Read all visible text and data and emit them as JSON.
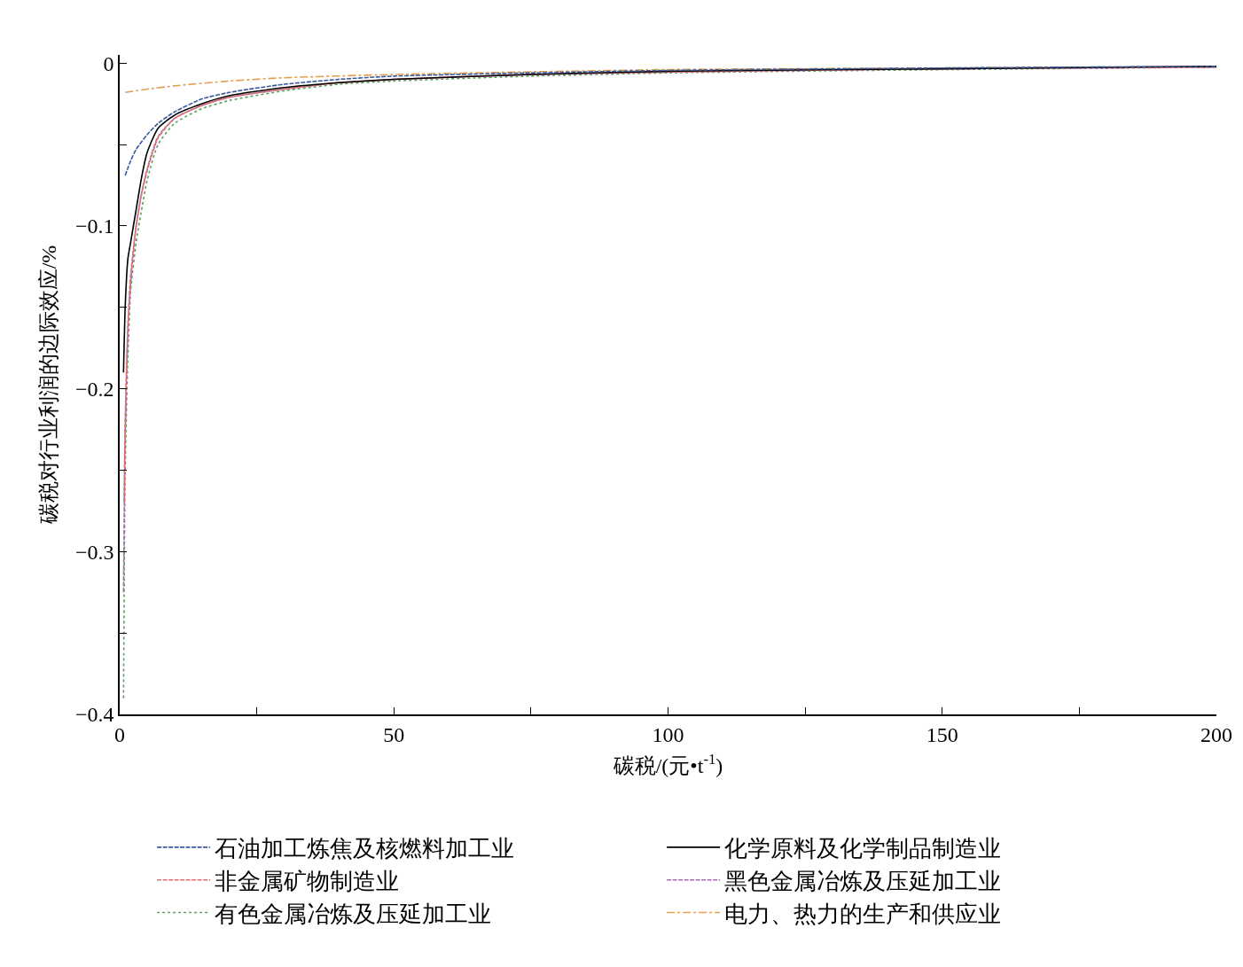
{
  "chart_data": {
    "type": "line",
    "xlabel": "碳税/(元•t$^{-1}$)",
    "ylabel": "碳税对行业利润的边际效应/%",
    "xlim": [
      0,
      200
    ],
    "ylim": [
      -0.4,
      0.005
    ],
    "xticks": [
      0,
      {
        "value": 25,
        "label": null
      },
      50,
      {
        "value": 75,
        "label": null
      },
      100,
      {
        "value": 125,
        "label": null
      },
      150,
      {
        "value": 175,
        "label": null
      },
      200
    ],
    "yticks": [
      {
        "value": -0.4,
        "label": "−0.4"
      },
      {
        "value": -0.35,
        "label": null
      },
      {
        "value": -0.3,
        "label": "−0.3"
      },
      {
        "value": -0.25,
        "label": null
      },
      {
        "value": -0.2,
        "label": "−0.2"
      },
      {
        "value": -0.15,
        "label": null
      },
      {
        "value": -0.1,
        "label": "−0.1"
      },
      {
        "value": -0.05,
        "label": null
      },
      {
        "value": 0,
        "label": "0"
      }
    ],
    "legend": "bottom",
    "marker": "none",
    "series": [
      {
        "name": "石油加工炼焦及核燃料加工业",
        "color": "#3a5a9c",
        "line_style": "dashed",
        "x": [
          1,
          2,
          3,
          5,
          7,
          10,
          15,
          20,
          30,
          40,
          50,
          75,
          100,
          150,
          200
        ],
        "values": [
          -0.069,
          -0.06,
          -0.053,
          -0.044,
          -0.037,
          -0.03,
          -0.022,
          -0.018,
          -0.013,
          -0.01,
          -0.008,
          -0.006,
          -0.0045,
          -0.003,
          -0.002
        ]
      },
      {
        "name": "化学原料及化学制品制造业",
        "color": "#000000",
        "line_style": "solid",
        "x": [
          0.7,
          1,
          1.5,
          2,
          3,
          4,
          5,
          7,
          10,
          15,
          20,
          30,
          40,
          50,
          75,
          100,
          150,
          200
        ],
        "values": [
          -0.19,
          -0.15,
          -0.12,
          -0.11,
          -0.09,
          -0.07,
          -0.055,
          -0.04,
          -0.032,
          -0.025,
          -0.02,
          -0.015,
          -0.012,
          -0.01,
          -0.007,
          -0.005,
          -0.0035,
          -0.002
        ]
      },
      {
        "name": "非金属矿物制造业",
        "color": "#e07070",
        "line_style": "dashed",
        "x": [
          0.8,
          1,
          1.5,
          2,
          3,
          4,
          5,
          7,
          10,
          15,
          20,
          30,
          40,
          50,
          75,
          100,
          150,
          200
        ],
        "values": [
          -0.27,
          -0.22,
          -0.16,
          -0.13,
          -0.1,
          -0.08,
          -0.065,
          -0.045,
          -0.034,
          -0.026,
          -0.021,
          -0.016,
          -0.012,
          -0.01,
          -0.007,
          -0.0055,
          -0.0035,
          -0.0025
        ]
      },
      {
        "name": "黑色金属冶炼及压延加工业",
        "color": "#a66bb0",
        "line_style": "dashed",
        "x": [
          0.7,
          1,
          1.5,
          2,
          3,
          4,
          5,
          7,
          10,
          15,
          20,
          30,
          40,
          50,
          75,
          100,
          150,
          200
        ],
        "values": [
          -0.325,
          -0.23,
          -0.165,
          -0.135,
          -0.1,
          -0.08,
          -0.066,
          -0.046,
          -0.034,
          -0.026,
          -0.021,
          -0.016,
          -0.012,
          -0.01,
          -0.007,
          -0.0055,
          -0.0035,
          -0.0025
        ]
      },
      {
        "name": "有色金属冶炼及压延加工业",
        "color": "#5a9e5a",
        "line_style": "dotted",
        "x": [
          0.7,
          1,
          1.5,
          2,
          3,
          4,
          5,
          7,
          10,
          15,
          20,
          30,
          40,
          50,
          75,
          100,
          150,
          200
        ],
        "values": [
          -0.39,
          -0.25,
          -0.18,
          -0.14,
          -0.11,
          -0.09,
          -0.072,
          -0.05,
          -0.037,
          -0.028,
          -0.023,
          -0.017,
          -0.013,
          -0.011,
          -0.008,
          -0.006,
          -0.004,
          -0.0025
        ]
      },
      {
        "name": "电力、热力的生产和供应业",
        "color": "#e0a050",
        "line_style": "dashdot",
        "x": [
          1,
          5,
          10,
          20,
          30,
          50,
          100,
          150,
          200
        ],
        "values": [
          -0.018,
          -0.016,
          -0.014,
          -0.011,
          -0.009,
          -0.007,
          -0.004,
          -0.003,
          -0.002
        ]
      }
    ]
  }
}
